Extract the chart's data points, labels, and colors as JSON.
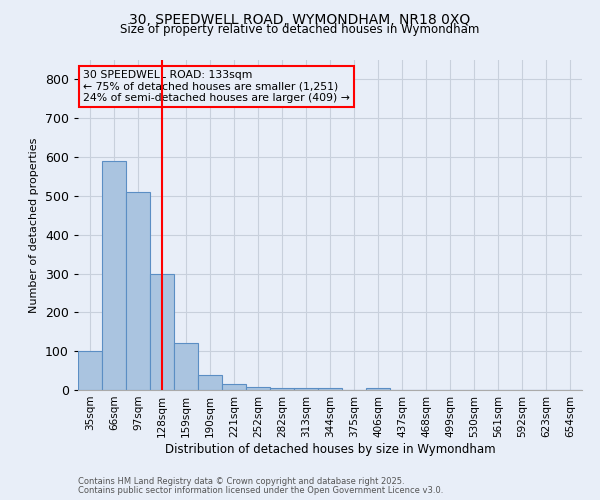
{
  "title_line1": "30, SPEEDWELL ROAD, WYMONDHAM, NR18 0XQ",
  "title_line2": "Size of property relative to detached houses in Wymondham",
  "xlabel": "Distribution of detached houses by size in Wymondham",
  "ylabel": "Number of detached properties",
  "footnote1": "Contains HM Land Registry data © Crown copyright and database right 2025.",
  "footnote2": "Contains public sector information licensed under the Open Government Licence v3.0.",
  "categories": [
    "35sqm",
    "66sqm",
    "97sqm",
    "128sqm",
    "159sqm",
    "190sqm",
    "221sqm",
    "252sqm",
    "282sqm",
    "313sqm",
    "344sqm",
    "375sqm",
    "406sqm",
    "437sqm",
    "468sqm",
    "499sqm",
    "530sqm",
    "561sqm",
    "592sqm",
    "623sqm",
    "654sqm"
  ],
  "values": [
    100,
    590,
    510,
    300,
    120,
    38,
    15,
    8,
    5,
    5,
    5,
    0,
    5,
    0,
    0,
    0,
    0,
    0,
    0,
    0,
    0
  ],
  "bar_color": "#aac4e0",
  "bar_edge_color": "#5b8ec4",
  "subject_line_color": "red",
  "annotation_text": "30 SPEEDWELL ROAD: 133sqm\n← 75% of detached houses are smaller (1,251)\n24% of semi-detached houses are larger (409) →",
  "annotation_box_color": "red",
  "ylim": [
    0,
    850
  ],
  "yticks": [
    0,
    100,
    200,
    300,
    400,
    500,
    600,
    700,
    800
  ],
  "grid_color": "#c8d0dc",
  "bg_color": "#e8eef8"
}
